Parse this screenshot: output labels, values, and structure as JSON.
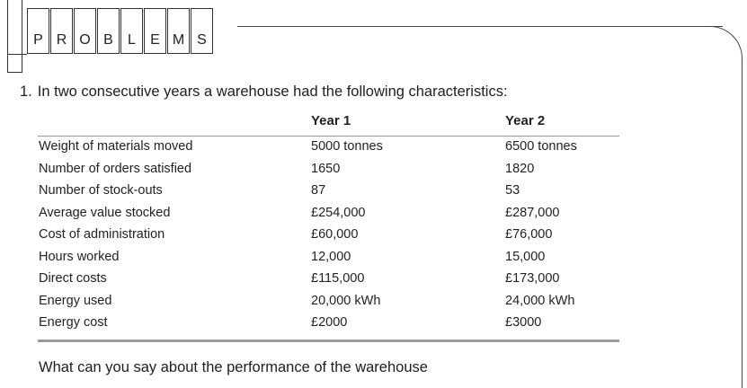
{
  "heading": {
    "letters": [
      "P",
      "R",
      "O",
      "B",
      "L",
      "E",
      "M",
      "S"
    ]
  },
  "question": {
    "number": "1.",
    "text": "In two consecutive years a warehouse had the following characteristics:"
  },
  "table": {
    "headers": [
      "Year 1",
      "Year 2"
    ],
    "rows": [
      {
        "label": "Weight of materials moved",
        "year1": "5000 tonnes",
        "year2": "6500 tonnes"
      },
      {
        "label": "Number of orders satisfied",
        "year1": "1650",
        "year2": "1820"
      },
      {
        "label": "Number of stock-outs",
        "year1": "87",
        "year2": "53"
      },
      {
        "label": "Average value stocked",
        "year1": "£254,000",
        "year2": "£287,000"
      },
      {
        "label": "Cost of administration",
        "year1": "£60,000",
        "year2": "£76,000"
      },
      {
        "label": "Hours worked",
        "year1": "12,000",
        "year2": "15,000"
      },
      {
        "label": "Direct costs",
        "year1": "£115,000",
        "year2": "£173,000"
      },
      {
        "label": "Energy used",
        "year1": "20,000 kWh",
        "year2": "24,000 kWh"
      },
      {
        "label": "Energy cost",
        "year1": "£2000",
        "year2": "£3000"
      }
    ]
  },
  "footer_question": "What can you say about the performance of the warehouse"
}
